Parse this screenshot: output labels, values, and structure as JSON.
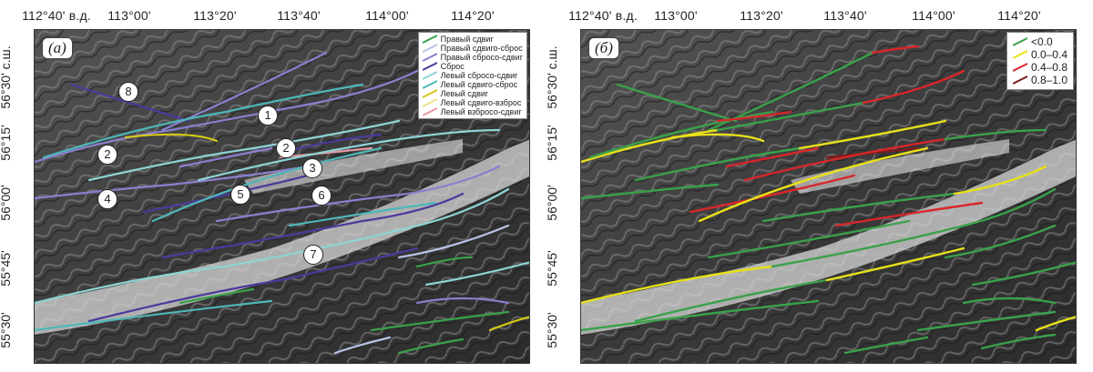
{
  "top_ticks": [
    "112°40' в.д.",
    "113°00'",
    "113°20'",
    "113°40'",
    "114°00'",
    "114°20'"
  ],
  "left_ticks": [
    "56°30' с.ш.",
    "56°15'",
    "56°00'",
    "55°45'",
    "55°30'"
  ],
  "panel_a": {
    "label": "(а)",
    "legend": [
      {
        "label": "Правый сдвиг",
        "color": "#3aa14a"
      },
      {
        "label": "Правый сдвиго-сброс",
        "color": "#b9c4e6"
      },
      {
        "label": "Правый сбросо-сдвиг",
        "color": "#8b7fcf"
      },
      {
        "label": "Сброс",
        "color": "#4b3a9c"
      },
      {
        "label": "Левый сбросо-сдвиг",
        "color": "#8fd3d6"
      },
      {
        "label": "Левый сдвиго-сброс",
        "color": "#4fb7b8"
      },
      {
        "label": "Левый сдвиг",
        "color": "#d7c816"
      },
      {
        "label": "Левый сдвиго-взброс",
        "color": "#ece38a"
      },
      {
        "label": "Левый взбросо-сдвиг",
        "color": "#e59aa4"
      }
    ],
    "fault_numbers": [
      "1",
      "2",
      "3",
      "2",
      "4",
      "5",
      "6",
      "7",
      "8"
    ]
  },
  "panel_b": {
    "label": "(б)",
    "legend": [
      {
        "label": "<0.0",
        "color": "#3aa14a"
      },
      {
        "label": "0.0–0.4",
        "color": "#e8e01a"
      },
      {
        "label": "0.4–0.8",
        "color": "#d9262a"
      },
      {
        "label": "0.8–1.0",
        "color": "#7d1c1c"
      }
    ]
  }
}
